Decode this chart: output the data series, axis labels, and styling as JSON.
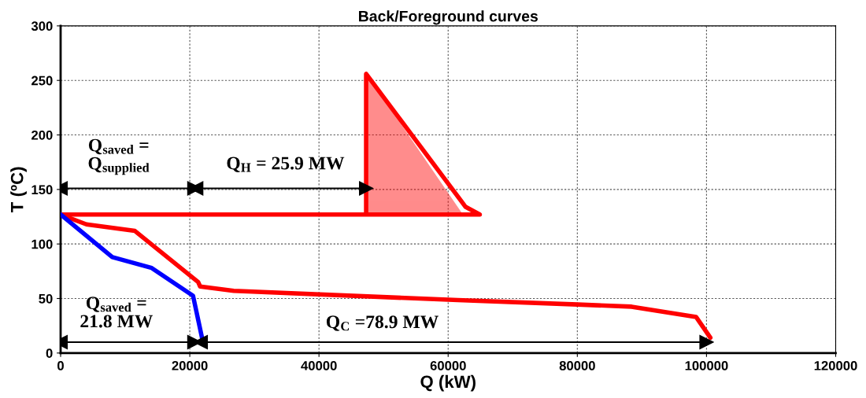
{
  "chart_data": {
    "type": "line",
    "title": "Back/Foreground curves",
    "xlabel": "Q (kW)",
    "ylabel": "T (ºC)",
    "xlim": [
      0,
      120000
    ],
    "xticks": [
      0,
      20000,
      40000,
      60000,
      80000,
      100000,
      120000
    ],
    "ylim": [
      0,
      300
    ],
    "yticks": [
      0,
      50,
      100,
      150,
      200,
      250,
      300
    ],
    "grid": true,
    "legend": false,
    "series": [
      {
        "type": "area",
        "color": "#ff0000",
        "x": [
          47300,
          47300,
          62200
        ],
        "values": [
          127,
          256,
          127
        ]
      },
      {
        "color": "#ff0000",
        "x": [
          0,
          64900,
          62700,
          47300,
          47300
        ],
        "values": [
          127,
          127,
          134,
          256,
          127
        ]
      },
      {
        "color": "#ff0000",
        "x": [
          0,
          4000,
          11500,
          21300,
          21600,
          26800,
          61500,
          80000,
          88400,
          98400,
          100600
        ],
        "values": [
          127,
          118,
          112,
          65,
          61,
          57,
          48.5,
          44.5,
          42.5,
          33,
          14
        ]
      },
      {
        "color": "#0000ff",
        "x": [
          0,
          8000,
          14100,
          20500,
          22000
        ],
        "values": [
          127,
          88,
          78,
          52.5,
          11
        ]
      },
      {
        "color": "#000000",
        "marker": "triangle",
        "x": [
          0,
          20700
        ],
        "values": [
          151,
          151
        ]
      },
      {
        "color": "#000000",
        "marker": "triangle",
        "x": [
          21000,
          47300
        ],
        "values": [
          151,
          151
        ]
      },
      {
        "color": "#000000",
        "marker": "triangle",
        "x": [
          0,
          20700
        ],
        "values": [
          10,
          10
        ]
      },
      {
        "color": "#000000",
        "marker": "triangle",
        "x": [
          21700,
          100000
        ],
        "values": [
          10,
          10
        ]
      }
    ],
    "annotations": [
      "Q$_{saved}$ =\nQ$_{supplied}$",
      "Q$_{H}$ = 25.9 MW",
      "Q$_{saved}$ =\n21.8 MW",
      "Q$_{C}$ =78.9 MW"
    ]
  }
}
